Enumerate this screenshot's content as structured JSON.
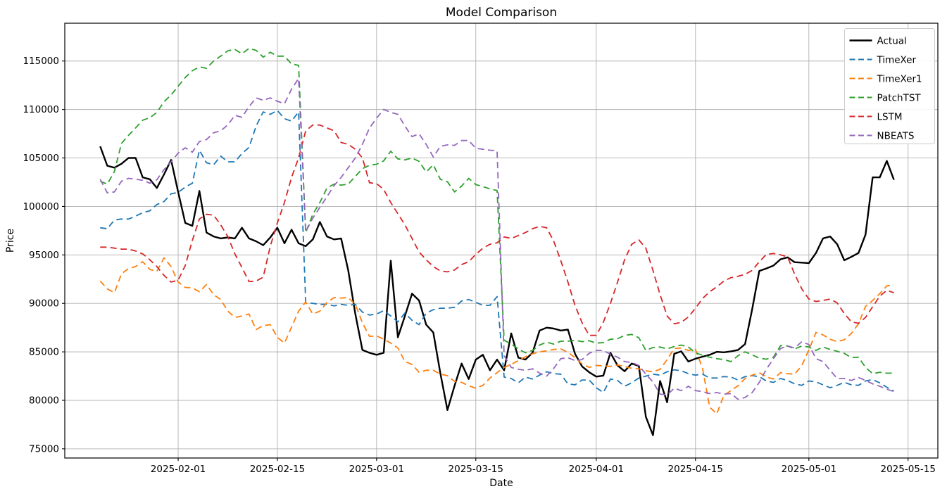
{
  "figure": {
    "title": "Model Comparison",
    "xlabel": "Date",
    "ylabel": "Price"
  },
  "chart_data": {
    "type": "line",
    "title": "Model Comparison",
    "xlabel": "Date",
    "ylabel": "Price",
    "grid": true,
    "legend_position": "upper right",
    "x_start_date": "2025-01-21",
    "x_freq": "daily",
    "n_points": 113,
    "x_tick_labels": [
      "2025-02-01",
      "2025-02-15",
      "2025-03-01",
      "2025-03-15",
      "2025-04-01",
      "2025-04-15",
      "2025-05-01",
      "2025-05-15"
    ],
    "x_tick_day_offsets": [
      11,
      25,
      39,
      53,
      70,
      84,
      100,
      114
    ],
    "y_ticks": [
      75000,
      80000,
      85000,
      90000,
      95000,
      100000,
      105000,
      110000,
      115000
    ],
    "xlim_days": [
      -5,
      118.2
    ],
    "ylim": [
      74050,
      118900
    ],
    "colors": {
      "grid": "#b0b0b0",
      "axes": "#000000",
      "legend_border": "#cccccc"
    },
    "series": [
      {
        "name": "Actual",
        "color": "#000000",
        "style": "solid",
        "values": [
          106200,
          104200,
          104000,
          104400,
          105000,
          105000,
          103000,
          102800,
          101900,
          103300,
          104800,
          101500,
          98300,
          98000,
          101600,
          97300,
          96900,
          96700,
          96800,
          96700,
          97800,
          96700,
          96400,
          96000,
          96800,
          97800,
          96200,
          97600,
          96200,
          95900,
          96600,
          98400,
          96900,
          96600,
          96700,
          93400,
          88900,
          85200,
          84900,
          84700,
          84900,
          94400,
          86500,
          88700,
          91000,
          90300,
          87800,
          87000,
          82800,
          79000,
          81500,
          83800,
          82200,
          84200,
          84700,
          83100,
          84200,
          83100,
          86900,
          84400,
          84200,
          84900,
          87200,
          87500,
          87400,
          87200,
          87300,
          84800,
          83500,
          82900,
          82450,
          82550,
          84900,
          83600,
          83000,
          83800,
          83550,
          78300,
          76400,
          82000,
          79800,
          84800,
          85050,
          84000,
          84300,
          84500,
          84700,
          85000,
          84950,
          85050,
          85200,
          85800,
          89400,
          93350,
          93600,
          93900,
          94550,
          94750,
          94250,
          94200,
          94150,
          95200,
          96700,
          96900,
          96100,
          94450,
          94800,
          95200,
          97100,
          103000,
          103000,
          104700,
          102750
        ]
      },
      {
        "name": "TimeXer",
        "color": "#1f77b4",
        "style": "dashed",
        "values": [
          97800,
          97700,
          98600,
          98700,
          98700,
          99000,
          99350,
          99550,
          100200,
          100500,
          101300,
          101450,
          102000,
          102400,
          105800,
          104500,
          104300,
          105200,
          104600,
          104600,
          105450,
          106100,
          108300,
          109750,
          109500,
          109900,
          109050,
          108800,
          109750,
          90100,
          90000,
          89900,
          89900,
          89750,
          89900,
          89800,
          89900,
          89100,
          88800,
          88900,
          89250,
          88700,
          88100,
          89000,
          88250,
          87800,
          89000,
          89350,
          89500,
          89500,
          89600,
          90250,
          90400,
          90100,
          89800,
          89800,
          90700,
          82400,
          82250,
          81800,
          82400,
          82200,
          82600,
          82950,
          82750,
          82700,
          81700,
          81600,
          82100,
          82100,
          81300,
          80800,
          82200,
          82050,
          81450,
          81800,
          82300,
          82500,
          82700,
          82600,
          82950,
          83150,
          83050,
          82750,
          82600,
          82700,
          82300,
          82300,
          82450,
          82400,
          82100,
          82450,
          82550,
          82450,
          82000,
          81850,
          82250,
          82050,
          81700,
          81550,
          82000,
          81900,
          81600,
          81300,
          81550,
          81850,
          81600,
          81550,
          82000,
          82150,
          81800,
          81350,
          80950
        ]
      },
      {
        "name": "TimeXer1",
        "color": "#ff7f0e",
        "style": "dashed",
        "values": [
          92300,
          91500,
          91100,
          93050,
          93600,
          93800,
          94300,
          93500,
          93300,
          94700,
          93800,
          92200,
          91650,
          91600,
          91200,
          91950,
          90900,
          90400,
          89200,
          88550,
          88700,
          88900,
          87300,
          87700,
          87800,
          86500,
          85900,
          87550,
          89200,
          90150,
          88900,
          89200,
          90100,
          90600,
          90550,
          90600,
          89900,
          88000,
          86600,
          86650,
          86300,
          85900,
          85400,
          84000,
          83700,
          82900,
          83100,
          83100,
          82700,
          82550,
          81950,
          81850,
          81500,
          81250,
          81550,
          82300,
          82850,
          83400,
          83700,
          84100,
          84500,
          84800,
          85000,
          85100,
          85250,
          85300,
          84950,
          84400,
          83750,
          83400,
          83600,
          83550,
          83500,
          83650,
          83500,
          83300,
          83250,
          83050,
          82950,
          83200,
          84200,
          85350,
          85400,
          85150,
          85250,
          83300,
          79300,
          78600,
          80500,
          81000,
          81500,
          82250,
          82600,
          82850,
          82400,
          82200,
          82850,
          82750,
          82700,
          83600,
          85200,
          87000,
          86750,
          86300,
          86050,
          86250,
          86900,
          87900,
          89700,
          90300,
          91000,
          91800,
          91950
        ]
      },
      {
        "name": "PatchTST",
        "color": "#2ca02c",
        "style": "dashed",
        "values": [
          102600,
          102300,
          103600,
          106500,
          107350,
          108100,
          108900,
          109150,
          109700,
          110800,
          111500,
          112400,
          113300,
          114000,
          114400,
          114250,
          115000,
          115500,
          116050,
          116200,
          115750,
          116300,
          116100,
          115400,
          115900,
          115500,
          115500,
          114700,
          114550,
          97300,
          99200,
          100400,
          101900,
          102300,
          102200,
          102300,
          103100,
          103900,
          104250,
          104350,
          104700,
          105700,
          104900,
          104800,
          105000,
          104650,
          103550,
          104300,
          102800,
          102550,
          101500,
          102100,
          102900,
          102250,
          102050,
          101800,
          101650,
          86200,
          85800,
          85300,
          84900,
          85150,
          85700,
          86000,
          85800,
          86100,
          86100,
          86200,
          86050,
          86150,
          85900,
          85950,
          86300,
          86350,
          86700,
          86800,
          86450,
          85150,
          85450,
          85500,
          85300,
          85550,
          85700,
          85500,
          84900,
          84650,
          84450,
          84300,
          84200,
          84000,
          84600,
          85000,
          84700,
          84350,
          84250,
          84450,
          85650,
          85600,
          85300,
          85600,
          85500,
          85150,
          85500,
          85250,
          85050,
          84850,
          84400,
          84450,
          83400,
          82750,
          82900,
          82800,
          82800
        ]
      },
      {
        "name": "LSTM",
        "color": "#d62728",
        "style": "dashed",
        "values": [
          95800,
          95800,
          95700,
          95600,
          95600,
          95400,
          95100,
          94500,
          93800,
          92900,
          92200,
          92400,
          93900,
          96500,
          98700,
          99200,
          99100,
          98100,
          96900,
          95100,
          93700,
          92250,
          92300,
          92700,
          95900,
          98300,
          100400,
          103000,
          105000,
          107800,
          108400,
          108400,
          108100,
          107800,
          106600,
          106400,
          105900,
          105000,
          102450,
          102350,
          101750,
          100400,
          99250,
          98100,
          96700,
          95300,
          94500,
          93800,
          93350,
          93250,
          93450,
          94000,
          94300,
          95050,
          95700,
          96100,
          96250,
          96850,
          96700,
          97000,
          97300,
          97700,
          97950,
          97800,
          96400,
          94400,
          92200,
          89800,
          88000,
          86700,
          86700,
          88050,
          90000,
          92200,
          94500,
          96100,
          96550,
          95700,
          93400,
          90900,
          88700,
          87900,
          88050,
          88600,
          89500,
          90500,
          91200,
          91700,
          92300,
          92650,
          92800,
          93000,
          93400,
          94300,
          95050,
          95150,
          95000,
          94800,
          93000,
          91500,
          90450,
          90200,
          90300,
          90450,
          90050,
          88950,
          88100,
          87950,
          88550,
          89650,
          90750,
          91350,
          91100
        ]
      },
      {
        "name": "NBEATS",
        "color": "#9467bd",
        "style": "dashed",
        "values": [
          102800,
          101400,
          101500,
          102600,
          102900,
          102800,
          102700,
          102400,
          102750,
          103800,
          104600,
          105500,
          106050,
          105600,
          106700,
          106900,
          107600,
          107800,
          108400,
          109400,
          109200,
          110300,
          111200,
          110950,
          111200,
          110850,
          110600,
          112100,
          113200,
          97400,
          98800,
          99900,
          101000,
          102150,
          103000,
          104000,
          105000,
          106400,
          108100,
          109100,
          110000,
          109700,
          109500,
          108300,
          107200,
          107500,
          106400,
          105100,
          106200,
          106350,
          106300,
          106800,
          106800,
          106000,
          105900,
          105800,
          105750,
          84600,
          83400,
          83200,
          83100,
          83250,
          82800,
          82500,
          83300,
          84300,
          84400,
          84100,
          84200,
          84850,
          85150,
          85150,
          84750,
          84450,
          84000,
          83900,
          83600,
          82700,
          81900,
          80650,
          80550,
          81250,
          81000,
          81450,
          81000,
          80900,
          80700,
          80800,
          80650,
          80700,
          80100,
          80300,
          80800,
          81850,
          83200,
          84300,
          85350,
          85600,
          85400,
          86050,
          85750,
          84300,
          84000,
          83100,
          82250,
          82250,
          82050,
          82350,
          82050,
          81700,
          81450,
          81150,
          80900
        ]
      }
    ]
  }
}
